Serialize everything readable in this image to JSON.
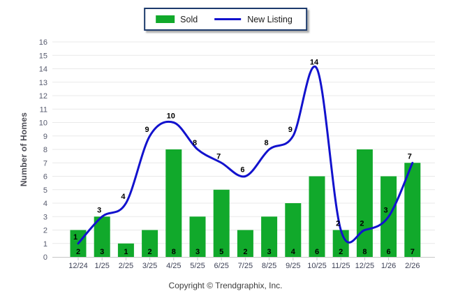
{
  "legend": {
    "items": [
      {
        "label": "Sold",
        "swatch": "green-bar-swatch"
      },
      {
        "label": "New Listing",
        "swatch": "blue-line-swatch"
      }
    ]
  },
  "chart_data": {
    "type": "combo",
    "title": "",
    "categories": [
      "12/24",
      "1/25",
      "2/25",
      "3/25",
      "4/25",
      "5/25",
      "6/25",
      "7/25",
      "8/25",
      "9/25",
      "10/25",
      "11/25",
      "12/25",
      "1/26",
      "2/26"
    ],
    "series": [
      {
        "name": "Sold",
        "type": "bar",
        "color": "#11a92b",
        "values": [
          2,
          3,
          1,
          2,
          8,
          3,
          5,
          2,
          3,
          4,
          6,
          2,
          8,
          6,
          7
        ]
      },
      {
        "name": "New Listing",
        "type": "line",
        "color": "#1212cd",
        "values": [
          1,
          3,
          4,
          9,
          10,
          8,
          7,
          6,
          8,
          9,
          14,
          2,
          2,
          3,
          7
        ]
      }
    ],
    "xlabel": "",
    "ylabel": "Number of Homes",
    "ylim": [
      0,
      16
    ],
    "ytick_interval": 1,
    "grid": "horizontal",
    "legend_position": "top-center",
    "data_labels": true
  },
  "footer": {
    "copyright": "Copyright © Trendgraphix, Inc."
  },
  "colors": {
    "bar": "#11a92b",
    "line": "#1212cd",
    "grid": "#e9e9e9",
    "axis": "#c6c6c6",
    "x_tick_label": "#3e4257",
    "y_tick_label": "#565a6d",
    "data_label": "#000000",
    "legend_border": "#1c3a6b"
  }
}
